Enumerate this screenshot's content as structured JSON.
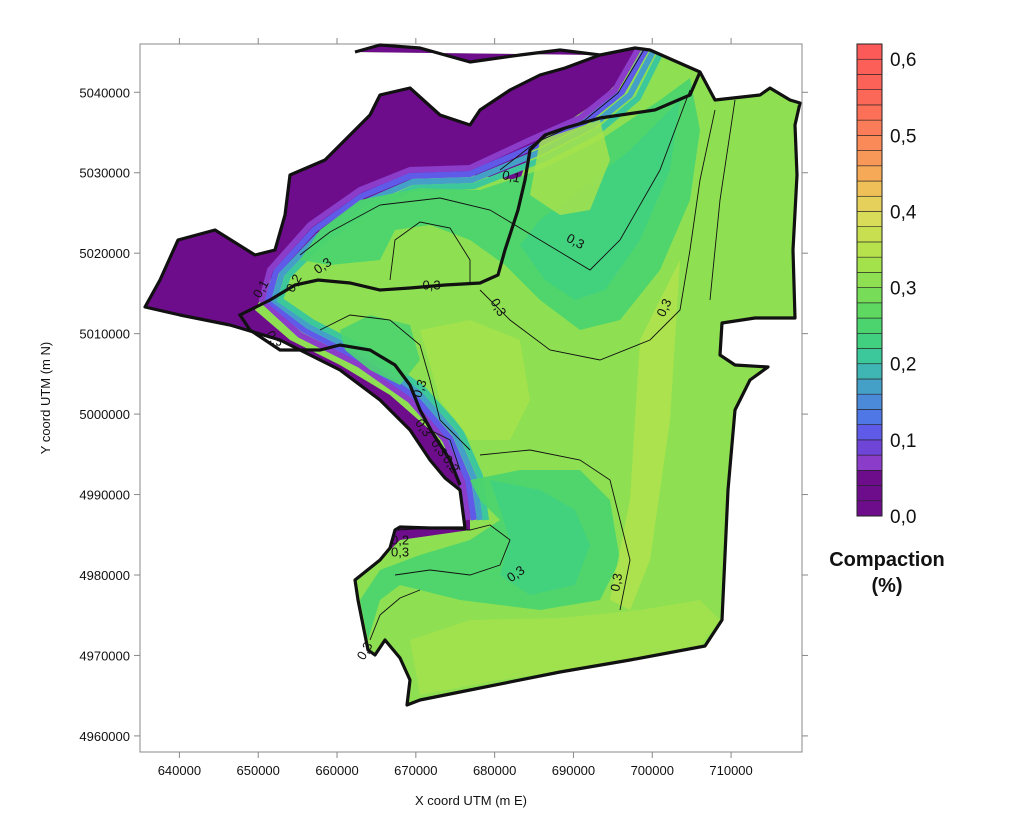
{
  "chart_data": {
    "type": "contour-map",
    "xlabel": "X coord UTM (m E)",
    "ylabel": "Y coord UTM (m N)",
    "xlim": [
      635000,
      719000
    ],
    "ylim": [
      4958000,
      5046000
    ],
    "x_ticks": [
      640000,
      650000,
      660000,
      670000,
      680000,
      690000,
      700000,
      710000
    ],
    "y_ticks": [
      4960000,
      4970000,
      4980000,
      4990000,
      5000000,
      5010000,
      5020000,
      5030000,
      5040000
    ],
    "x_tick_labels": [
      "640000",
      "650000",
      "660000",
      "670000",
      "680000",
      "690000",
      "700000",
      "710000"
    ],
    "y_tick_labels": [
      "4960000",
      "4970000",
      "4980000",
      "4990000",
      "5000000",
      "5010000",
      "5020000",
      "5030000",
      "5040000"
    ],
    "colorbar": {
      "title_line1": "Compaction",
      "title_line2": "(%)",
      "range": [
        0.0,
        0.62
      ],
      "tick_values": [
        0.0,
        0.1,
        0.2,
        0.3,
        0.4,
        0.5,
        0.6
      ],
      "tick_labels": [
        "0,0",
        "0,1",
        "0,2",
        "0,3",
        "0,4",
        "0,5",
        "0,6"
      ],
      "bands": [
        {
          "value": 0.01,
          "color": "#6e0d8c"
        },
        {
          "value": 0.03,
          "color": "#6e0d8c"
        },
        {
          "value": 0.05,
          "color": "#6e0d8c"
        },
        {
          "value": 0.07,
          "color": "#8b3cc8"
        },
        {
          "value": 0.09,
          "color": "#6f45d8"
        },
        {
          "value": 0.11,
          "color": "#5f5be8"
        },
        {
          "value": 0.13,
          "color": "#4f78e6"
        },
        {
          "value": 0.15,
          "color": "#4a8ad8"
        },
        {
          "value": 0.17,
          "color": "#45a0c8"
        },
        {
          "value": 0.19,
          "color": "#40b6b4"
        },
        {
          "value": 0.21,
          "color": "#3cc89b"
        },
        {
          "value": 0.23,
          "color": "#40d080"
        },
        {
          "value": 0.25,
          "color": "#4cd46e"
        },
        {
          "value": 0.27,
          "color": "#5fd862"
        },
        {
          "value": 0.29,
          "color": "#77dc58"
        },
        {
          "value": 0.31,
          "color": "#8ee052"
        },
        {
          "value": 0.33,
          "color": "#a4e24c"
        },
        {
          "value": 0.35,
          "color": "#b8e24c"
        },
        {
          "value": 0.37,
          "color": "#c8e050"
        },
        {
          "value": 0.39,
          "color": "#d8dc58"
        },
        {
          "value": 0.41,
          "color": "#e6d05c"
        },
        {
          "value": 0.43,
          "color": "#f0c058"
        },
        {
          "value": 0.45,
          "color": "#f6aa58"
        },
        {
          "value": 0.47,
          "color": "#f89858"
        },
        {
          "value": 0.49,
          "color": "#fa8a58"
        },
        {
          "value": 0.51,
          "color": "#fb7c58"
        },
        {
          "value": 0.53,
          "color": "#fc7058"
        },
        {
          "value": 0.55,
          "color": "#fc6858"
        },
        {
          "value": 0.57,
          "color": "#fc6258"
        },
        {
          "value": 0.59,
          "color": "#fc5e58"
        },
        {
          "value": 0.61,
          "color": "#fc5a58"
        }
      ]
    },
    "contour_labels": [
      {
        "text": "0,1",
        "x": 682000,
        "y": 5029000,
        "rotate": 12
      },
      {
        "text": "0,2",
        "x": 655000,
        "y": 5016000,
        "rotate": -60
      },
      {
        "text": "0,1",
        "x": 650800,
        "y": 5015300,
        "rotate": -60
      },
      {
        "text": "0,3",
        "x": 658500,
        "y": 5018000,
        "rotate": -35
      },
      {
        "text": "0,3",
        "x": 672000,
        "y": 5015500,
        "rotate": 0
      },
      {
        "text": "0,3",
        "x": 680000,
        "y": 5013000,
        "rotate": 60
      },
      {
        "text": "0,3",
        "x": 690000,
        "y": 5021000,
        "rotate": 28
      },
      {
        "text": "0,3",
        "x": 702000,
        "y": 5013000,
        "rotate": -65
      },
      {
        "text": "0,3",
        "x": 651500,
        "y": 5009000,
        "rotate": 60
      },
      {
        "text": "0,3",
        "x": 671000,
        "y": 5003000,
        "rotate": -70
      },
      {
        "text": "0,3",
        "x": 670500,
        "y": 4998000,
        "rotate": 55
      },
      {
        "text": "0,3",
        "x": 672500,
        "y": 4995500,
        "rotate": 55
      },
      {
        "text": "0,2",
        "x": 674000,
        "y": 4993500,
        "rotate": 55
      },
      {
        "text": "0,2",
        "x": 668000,
        "y": 4983800,
        "rotate": 0
      },
      {
        "text": "0,3",
        "x": 668000,
        "y": 4982300,
        "rotate": 0
      },
      {
        "text": "0,3",
        "x": 683000,
        "y": 4979700,
        "rotate": -35
      },
      {
        "text": "0,3",
        "x": 696000,
        "y": 4979000,
        "rotate": -80
      },
      {
        "text": "0,3",
        "x": 664000,
        "y": 4970300,
        "rotate": -60
      }
    ]
  }
}
